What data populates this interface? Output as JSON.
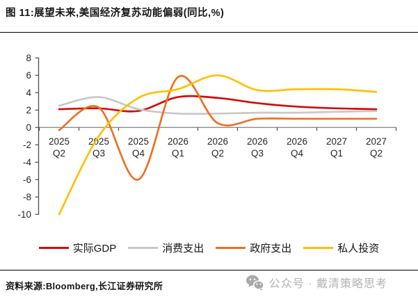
{
  "title": "图 11:展望未来,美国经济复苏动能偏弱(同比,%)",
  "source": "资料来源:Bloomberg,长江证券研究所",
  "watermark": {
    "icon": "wechat-icon",
    "text": "公众号 · 戴清策略思考"
  },
  "colors": {
    "red": "#d40b0b",
    "gray": "#c8c8c8",
    "orange": "#ee7020",
    "yellow": "#ffc000",
    "axis": "#4d4d4d",
    "zero_line": "#8c8c8c",
    "tick_label": "#262626",
    "watermark_gray": "#b3b3b3"
  },
  "chart_data": {
    "type": "line",
    "categories": [
      "2025 Q2",
      "2025 Q3",
      "2025 Q4",
      "2026 Q1",
      "2026 Q2",
      "2026 Q3",
      "2026 Q4",
      "2027 Q1",
      "2027 Q2"
    ],
    "series": [
      {
        "name": "实际GDP",
        "color": "#d40b0b",
        "values": [
          2.1,
          2.2,
          1.9,
          3.5,
          3.4,
          2.8,
          2.4,
          2.2,
          2.1
        ]
      },
      {
        "name": "消费支出",
        "color": "#c8c8c8",
        "values": [
          2.5,
          3.5,
          2.1,
          1.6,
          1.6,
          1.7,
          1.7,
          1.8,
          1.9
        ]
      },
      {
        "name": "政府支出",
        "color": "#ee7020",
        "values": [
          -0.3,
          2.3,
          -6.0,
          5.8,
          0.5,
          1.0,
          1.0,
          1.0,
          1.0
        ]
      },
      {
        "name": "私人投资",
        "color": "#ffc000",
        "values": [
          -10.0,
          -1.0,
          3.4,
          4.4,
          6.0,
          4.3,
          4.4,
          4.4,
          4.1
        ]
      }
    ],
    "ylim": [
      -10,
      8
    ],
    "ytick_step": 2,
    "xlabel": "",
    "ylabel": "",
    "grid": false,
    "legend_position": "bottom",
    "smooth": true
  }
}
